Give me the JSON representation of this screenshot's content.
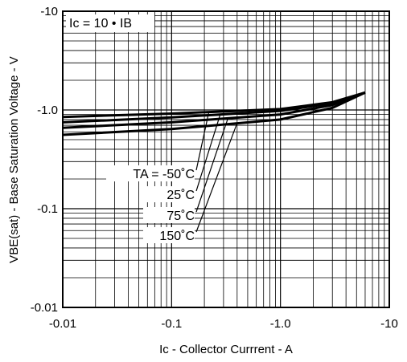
{
  "chart_data": {
    "type": "line",
    "xlabel": "Ic - Collector Currrent - A",
    "ylabel": "VBE(sat) - Base Saturation Voltage - V",
    "xscale": "log",
    "yscale": "log",
    "xlim": [
      -0.01,
      -10
    ],
    "ylim": [
      -0.01,
      -10
    ],
    "x_tick_labels": [
      "-0.01",
      "-0.1",
      "-1.0",
      "-10"
    ],
    "y_tick_labels": [
      "-10",
      "-1.0",
      "-0.1",
      "-0.01"
    ],
    "x_ticks": [
      0.01,
      0.1,
      1.0,
      10
    ],
    "y_ticks": [
      10,
      1.0,
      0.1,
      0.01
    ],
    "grid": true,
    "condition_label": "Ic = 10 • IB",
    "series": [
      {
        "name": "TA = -50˚C",
        "x": [
          0.01,
          0.1,
          1.0,
          3.0,
          6.0
        ],
        "y": [
          -0.85,
          -0.92,
          -1.02,
          -1.2,
          -1.5
        ]
      },
      {
        "name": "25˚C",
        "x": [
          0.01,
          0.1,
          1.0,
          3.0,
          6.0
        ],
        "y": [
          -0.75,
          -0.84,
          -0.98,
          -1.17,
          -1.5
        ]
      },
      {
        "name": "75˚C",
        "x": [
          0.01,
          0.1,
          1.0,
          3.0,
          6.0
        ],
        "y": [
          -0.66,
          -0.75,
          -0.9,
          -1.12,
          -1.5
        ]
      },
      {
        "name": "150˚C",
        "x": [
          0.01,
          0.1,
          1.0,
          3.0,
          6.0
        ],
        "y": [
          -0.56,
          -0.64,
          -0.8,
          -1.05,
          -1.5
        ]
      }
    ]
  }
}
